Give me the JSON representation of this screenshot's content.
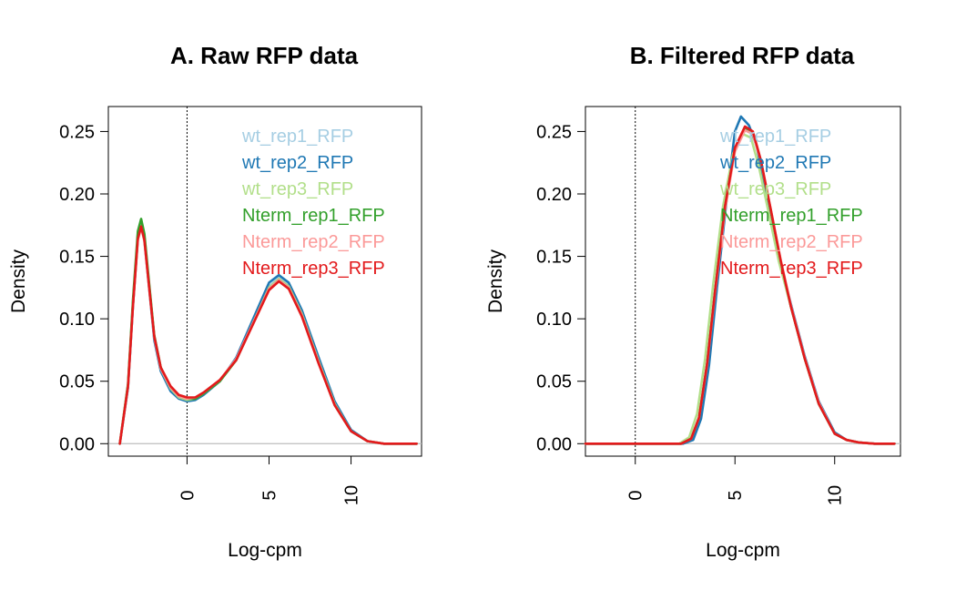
{
  "palette": {
    "wt_rep1_RFP": "#a6cee3",
    "wt_rep2_RFP": "#1f78b4",
    "wt_rep3_RFP": "#b2df8a",
    "Nterm_rep1_RFP": "#33a02c",
    "Nterm_rep2_RFP": "#fb9a99",
    "Nterm_rep3_RFP": "#e31a1c"
  },
  "chart_data": [
    {
      "type": "line",
      "title": "A. Raw RFP data",
      "xlabel": "Log-cpm",
      "ylabel": "Density",
      "xlim": [
        -4.8,
        14.3
      ],
      "ylim": [
        -0.01,
        0.27
      ],
      "x_ticks": [
        0,
        5,
        10
      ],
      "y_ticks": [
        0.0,
        0.05,
        0.1,
        0.15,
        0.2,
        0.25
      ],
      "y_tick_labels": [
        "0.00",
        "0.05",
        "0.10",
        "0.15",
        "0.20",
        "0.25"
      ],
      "vline": 0,
      "hline": 0,
      "legend": {
        "position": "top-right",
        "entries": [
          "wt_rep1_RFP",
          "wt_rep2_RFP",
          "wt_rep3_RFP",
          "Nterm_rep1_RFP",
          "Nterm_rep2_RFP",
          "Nterm_rep3_RFP"
        ]
      },
      "series": [
        {
          "name": "wt_rep1_RFP",
          "color": "#a6cee3",
          "x": [
            -4.1,
            -3.6,
            -3.3,
            -3.0,
            -2.8,
            -2.6,
            -2.3,
            -2.0,
            -1.6,
            -1.0,
            -0.5,
            0.0,
            0.5,
            1.0,
            2.0,
            3.0,
            4.0,
            5.0,
            5.6,
            6.2,
            7.0,
            8.0,
            9.0,
            10.0,
            11.0,
            12.0,
            14.0
          ],
          "y": [
            0.0,
            0.045,
            0.11,
            0.165,
            0.176,
            0.165,
            0.125,
            0.085,
            0.06,
            0.044,
            0.038,
            0.035,
            0.036,
            0.04,
            0.05,
            0.068,
            0.097,
            0.126,
            0.133,
            0.127,
            0.105,
            0.068,
            0.032,
            0.01,
            0.002,
            0.0,
            0.0
          ]
        },
        {
          "name": "wt_rep2_RFP",
          "color": "#1f78b4",
          "x": [
            -4.1,
            -3.6,
            -3.3,
            -3.0,
            -2.8,
            -2.6,
            -2.3,
            -2.0,
            -1.6,
            -1.0,
            -0.5,
            0.0,
            0.5,
            1.0,
            2.0,
            3.0,
            4.0,
            5.0,
            5.6,
            6.2,
            7.0,
            8.0,
            9.0,
            10.0,
            11.0,
            12.0,
            14.0
          ],
          "y": [
            0.0,
            0.045,
            0.11,
            0.165,
            0.175,
            0.163,
            0.123,
            0.083,
            0.058,
            0.042,
            0.036,
            0.034,
            0.035,
            0.039,
            0.05,
            0.069,
            0.099,
            0.129,
            0.135,
            0.129,
            0.107,
            0.07,
            0.034,
            0.011,
            0.002,
            0.0,
            0.0
          ]
        },
        {
          "name": "wt_rep3_RFP",
          "color": "#b2df8a",
          "x": [
            -4.1,
            -3.6,
            -3.3,
            -3.0,
            -2.8,
            -2.6,
            -2.3,
            -2.0,
            -1.6,
            -1.0,
            -0.5,
            0.0,
            0.5,
            1.0,
            2.0,
            3.0,
            4.0,
            5.0,
            5.6,
            6.2,
            7.0,
            8.0,
            9.0,
            10.0,
            11.0,
            12.0,
            14.0
          ],
          "y": [
            0.0,
            0.047,
            0.113,
            0.168,
            0.178,
            0.166,
            0.126,
            0.086,
            0.06,
            0.044,
            0.037,
            0.035,
            0.036,
            0.04,
            0.05,
            0.067,
            0.096,
            0.125,
            0.132,
            0.126,
            0.104,
            0.067,
            0.032,
            0.01,
            0.002,
            0.0,
            0.0
          ]
        },
        {
          "name": "Nterm_rep1_RFP",
          "color": "#33a02c",
          "x": [
            -4.1,
            -3.6,
            -3.3,
            -3.0,
            -2.8,
            -2.6,
            -2.3,
            -2.0,
            -1.6,
            -1.0,
            -0.5,
            0.0,
            0.5,
            1.0,
            2.0,
            3.0,
            4.0,
            5.0,
            5.6,
            6.2,
            7.0,
            8.0,
            9.0,
            10.0,
            11.0,
            12.0,
            14.0
          ],
          "y": [
            0.0,
            0.048,
            0.115,
            0.17,
            0.18,
            0.168,
            0.127,
            0.087,
            0.061,
            0.045,
            0.038,
            0.036,
            0.036,
            0.04,
            0.05,
            0.067,
            0.096,
            0.124,
            0.131,
            0.125,
            0.103,
            0.066,
            0.031,
            0.01,
            0.002,
            0.0,
            0.0
          ]
        },
        {
          "name": "Nterm_rep2_RFP",
          "color": "#fb9a99",
          "x": [
            -4.1,
            -3.6,
            -3.3,
            -3.0,
            -2.8,
            -2.6,
            -2.3,
            -2.0,
            -1.6,
            -1.0,
            -0.5,
            0.0,
            0.5,
            1.0,
            2.0,
            3.0,
            4.0,
            5.0,
            5.6,
            6.2,
            7.0,
            8.0,
            9.0,
            10.0,
            11.0,
            12.0,
            14.0
          ],
          "y": [
            0.0,
            0.046,
            0.11,
            0.163,
            0.173,
            0.162,
            0.123,
            0.085,
            0.06,
            0.045,
            0.038,
            0.036,
            0.037,
            0.041,
            0.051,
            0.068,
            0.096,
            0.124,
            0.131,
            0.125,
            0.103,
            0.066,
            0.031,
            0.01,
            0.002,
            0.0,
            0.0
          ]
        },
        {
          "name": "Nterm_rep3_RFP",
          "color": "#e31a1c",
          "x": [
            -4.1,
            -3.6,
            -3.3,
            -3.0,
            -2.8,
            -2.6,
            -2.3,
            -2.0,
            -1.6,
            -1.0,
            -0.5,
            0.0,
            0.5,
            1.0,
            2.0,
            3.0,
            4.0,
            5.0,
            5.6,
            6.2,
            7.0,
            8.0,
            9.0,
            10.0,
            11.0,
            12.0,
            14.0
          ],
          "y": [
            0.0,
            0.046,
            0.11,
            0.164,
            0.174,
            0.163,
            0.124,
            0.086,
            0.061,
            0.046,
            0.039,
            0.037,
            0.037,
            0.041,
            0.051,
            0.067,
            0.095,
            0.123,
            0.13,
            0.124,
            0.102,
            0.065,
            0.031,
            0.01,
            0.002,
            0.0,
            0.0
          ]
        }
      ]
    },
    {
      "type": "line",
      "title": "B. Filtered RFP data",
      "xlabel": "Log-cpm",
      "ylabel": "Density",
      "xlim": [
        -2.5,
        13.3
      ],
      "ylim": [
        -0.01,
        0.27
      ],
      "x_ticks": [
        0,
        5,
        10
      ],
      "y_ticks": [
        0.0,
        0.05,
        0.1,
        0.15,
        0.2,
        0.25
      ],
      "y_tick_labels": [
        "0.00",
        "0.05",
        "0.10",
        "0.15",
        "0.20",
        "0.25"
      ],
      "vline": 0,
      "hline": 0,
      "legend": {
        "position": "top-right",
        "entries": [
          "wt_rep1_RFP",
          "wt_rep2_RFP",
          "wt_rep3_RFP",
          "Nterm_rep1_RFP",
          "Nterm_rep2_RFP",
          "Nterm_rep3_RFP"
        ]
      },
      "series": [
        {
          "name": "wt_rep1_RFP",
          "color": "#a6cee3",
          "x": [
            -2.5,
            2.3,
            2.8,
            3.2,
            3.6,
            4.0,
            4.5,
            5.0,
            5.5,
            5.9,
            6.3,
            6.8,
            7.3,
            7.8,
            8.5,
            9.2,
            10.0,
            10.6,
            11.2,
            12.0,
            13.0
          ],
          "y": [
            0.0,
            0.0,
            0.004,
            0.02,
            0.062,
            0.12,
            0.188,
            0.235,
            0.252,
            0.248,
            0.225,
            0.185,
            0.145,
            0.11,
            0.068,
            0.032,
            0.008,
            0.003,
            0.001,
            0.0,
            0.0
          ]
        },
        {
          "name": "wt_rep2_RFP",
          "color": "#1f78b4",
          "x": [
            -2.5,
            2.4,
            2.9,
            3.3,
            3.7,
            4.1,
            4.6,
            5.0,
            5.3,
            5.7,
            6.1,
            6.6,
            7.2,
            7.8,
            8.5,
            9.2,
            10.0,
            10.6,
            11.2,
            12.0,
            13.0
          ],
          "y": [
            0.0,
            0.0,
            0.003,
            0.02,
            0.063,
            0.125,
            0.198,
            0.25,
            0.262,
            0.255,
            0.238,
            0.195,
            0.15,
            0.112,
            0.07,
            0.034,
            0.009,
            0.003,
            0.001,
            0.0,
            0.0
          ]
        },
        {
          "name": "wt_rep3_RFP",
          "color": "#b2df8a",
          "x": [
            -2.5,
            2.2,
            2.7,
            3.1,
            3.5,
            3.9,
            4.4,
            4.9,
            5.4,
            5.8,
            6.2,
            6.7,
            7.2,
            7.8,
            8.5,
            9.2,
            10.0,
            10.6,
            11.2,
            12.0,
            13.0
          ],
          "y": [
            0.0,
            0.0,
            0.005,
            0.024,
            0.068,
            0.127,
            0.19,
            0.232,
            0.248,
            0.245,
            0.222,
            0.184,
            0.146,
            0.11,
            0.068,
            0.032,
            0.008,
            0.003,
            0.001,
            0.0,
            0.0
          ]
        },
        {
          "name": "Nterm_rep1_RFP",
          "color": "#33a02c",
          "x": [
            -2.5,
            2.3,
            2.8,
            3.2,
            3.6,
            4.0,
            4.5,
            5.0,
            5.5,
            5.9,
            6.3,
            6.8,
            7.3,
            7.8,
            8.5,
            9.2,
            10.0,
            10.6,
            11.2,
            12.0,
            13.0
          ],
          "y": [
            0.0,
            0.0,
            0.004,
            0.021,
            0.064,
            0.122,
            0.19,
            0.236,
            0.253,
            0.249,
            0.226,
            0.186,
            0.146,
            0.11,
            0.068,
            0.032,
            0.008,
            0.003,
            0.001,
            0.0,
            0.0
          ]
        },
        {
          "name": "Nterm_rep2_RFP",
          "color": "#fb9a99",
          "x": [
            -2.5,
            2.3,
            2.8,
            3.2,
            3.6,
            4.0,
            4.5,
            5.0,
            5.5,
            5.9,
            6.3,
            6.8,
            7.3,
            7.8,
            8.5,
            9.2,
            10.0,
            10.6,
            11.2,
            12.0,
            13.0
          ],
          "y": [
            0.0,
            0.0,
            0.004,
            0.021,
            0.063,
            0.12,
            0.187,
            0.234,
            0.251,
            0.248,
            0.226,
            0.187,
            0.147,
            0.111,
            0.069,
            0.033,
            0.008,
            0.003,
            0.001,
            0.0,
            0.0
          ]
        },
        {
          "name": "Nterm_rep3_RFP",
          "color": "#e31a1c",
          "x": [
            -2.5,
            2.3,
            2.8,
            3.2,
            3.6,
            4.0,
            4.5,
            5.0,
            5.5,
            5.9,
            6.3,
            6.8,
            7.3,
            7.8,
            8.5,
            9.2,
            10.0,
            10.6,
            11.2,
            12.0,
            13.0
          ],
          "y": [
            0.0,
            0.0,
            0.004,
            0.021,
            0.064,
            0.122,
            0.19,
            0.237,
            0.254,
            0.25,
            0.227,
            0.187,
            0.146,
            0.11,
            0.068,
            0.032,
            0.008,
            0.003,
            0.001,
            0.0,
            0.0
          ]
        }
      ]
    }
  ]
}
